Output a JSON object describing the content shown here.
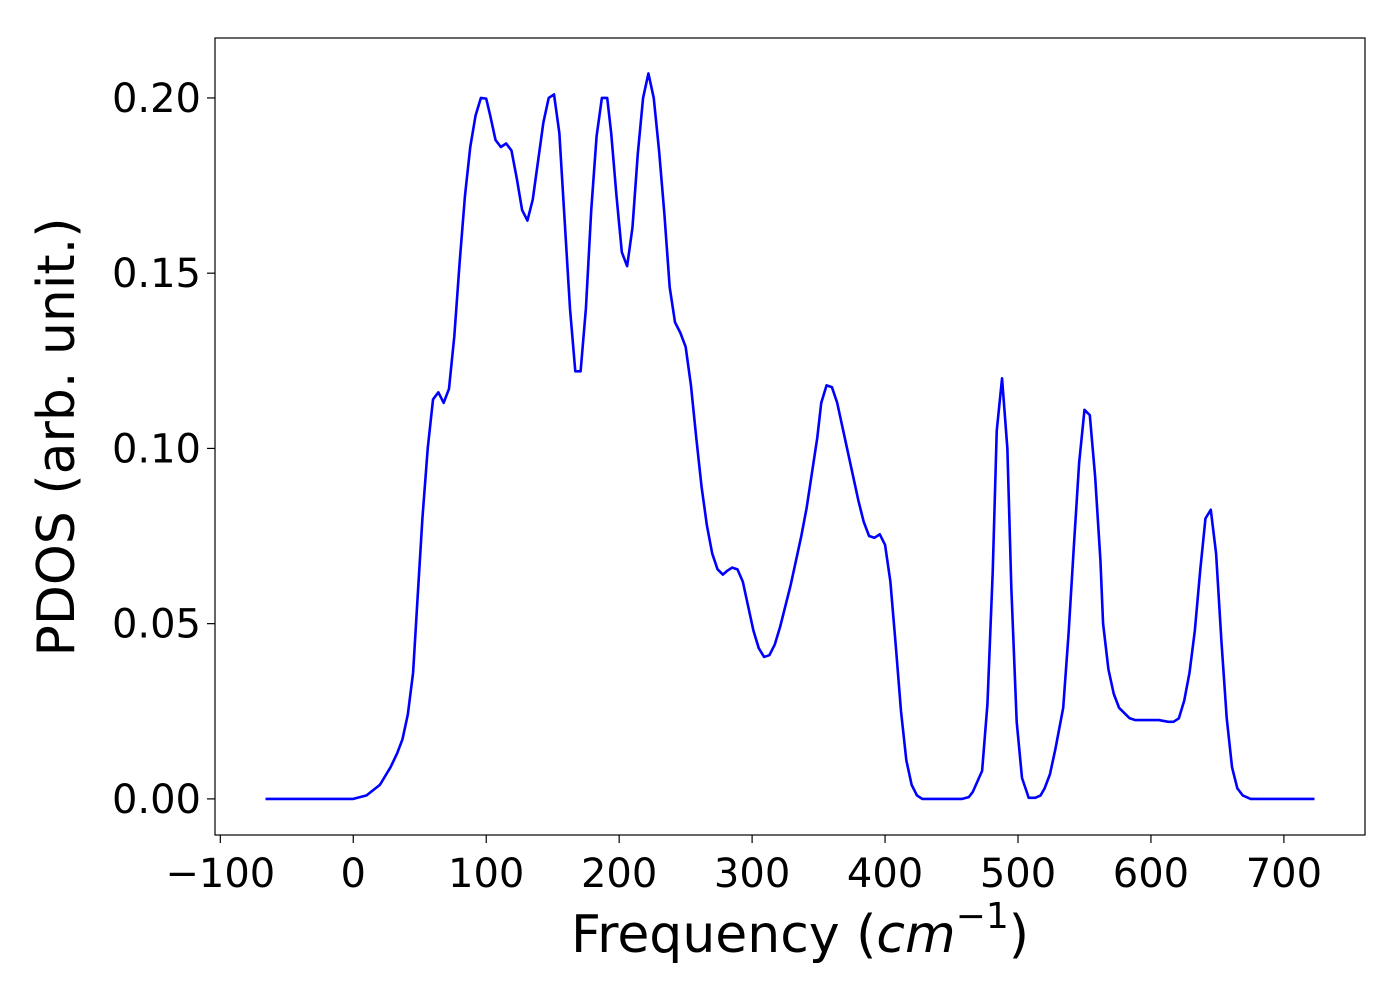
{
  "chart_data": {
    "type": "line",
    "ylabel": "PDOS (arb. unit.)",
    "xlabel": {
      "text": "Frequency (",
      "unit": "cm",
      "exponent": "−1",
      "close": ")"
    },
    "xlim": [
      -104,
      761
    ],
    "ylim": [
      -0.0103,
      0.2171
    ],
    "xticks": [
      {
        "value": -100,
        "label": "−100"
      },
      0,
      100,
      200,
      300,
      400,
      500,
      600,
      700
    ],
    "yticks": [
      {
        "value": 0,
        "label": "0.00"
      },
      {
        "value": 0.05,
        "label": "0.05"
      },
      {
        "value": 0.1,
        "label": "0.10"
      },
      {
        "value": 0.15,
        "label": "0.15"
      },
      {
        "value": 0.2,
        "label": "0.20"
      }
    ],
    "x": [
      -66,
      0,
      10,
      20,
      28,
      33,
      37,
      41,
      45,
      48,
      52,
      56,
      60,
      64,
      68,
      72,
      76,
      80,
      84,
      88,
      92,
      96,
      100,
      103,
      107,
      111,
      115,
      119,
      123,
      127,
      131,
      135,
      139,
      143,
      147,
      151,
      155,
      159,
      163,
      167,
      171,
      175,
      179,
      183,
      187,
      191,
      194,
      198,
      202,
      206,
      210,
      214,
      218,
      222,
      226,
      230,
      234,
      238,
      242,
      246,
      250,
      254,
      258,
      262,
      266,
      270,
      274,
      278,
      281,
      285,
      289,
      293,
      297,
      301,
      305,
      309,
      313,
      317,
      321,
      325,
      329,
      333,
      337,
      341,
      345,
      349,
      352,
      356,
      360,
      364,
      368,
      372,
      376,
      380,
      384,
      388,
      392,
      396,
      400,
      404,
      408,
      412,
      416,
      420,
      424,
      428,
      458,
      463,
      466,
      473,
      477,
      481,
      484,
      488,
      492,
      495,
      499,
      503,
      507,
      508,
      513,
      517,
      520,
      524,
      528,
      534,
      538,
      542,
      546,
      550,
      554,
      558,
      562,
      564,
      568,
      572,
      576,
      580,
      584,
      588,
      597,
      606,
      613,
      617,
      621,
      625,
      629,
      633,
      637,
      641,
      645,
      649,
      653,
      657,
      661,
      665,
      669,
      675,
      723
    ],
    "series": [
      {
        "name": "PDOS",
        "color": "#0000ff",
        "values": [
          0,
          0,
          0.001,
          0.004,
          0.009,
          0.013,
          0.017,
          0.024,
          0.036,
          0.055,
          0.08,
          0.1,
          0.114,
          0.116,
          0.113,
          0.117,
          0.132,
          0.153,
          0.172,
          0.186,
          0.195,
          0.2,
          0.1998,
          0.195,
          0.188,
          0.186,
          0.187,
          0.185,
          0.177,
          0.168,
          0.165,
          0.171,
          0.182,
          0.193,
          0.2,
          0.201,
          0.19,
          0.165,
          0.14,
          0.122,
          0.122,
          0.14,
          0.168,
          0.189,
          0.2,
          0.2,
          0.19,
          0.172,
          0.156,
          0.152,
          0.163,
          0.184,
          0.2,
          0.207,
          0.2,
          0.185,
          0.167,
          0.146,
          0.136,
          0.133,
          0.129,
          0.118,
          0.103,
          0.089,
          0.078,
          0.07,
          0.0655,
          0.064,
          0.065,
          0.066,
          0.0655,
          0.062,
          0.055,
          0.048,
          0.043,
          0.0405,
          0.041,
          0.044,
          0.049,
          0.055,
          0.061,
          0.068,
          0.075,
          0.083,
          0.093,
          0.103,
          0.113,
          0.118,
          0.1175,
          0.113,
          0.106,
          0.099,
          0.092,
          0.085,
          0.079,
          0.075,
          0.0745,
          0.0755,
          0.0725,
          0.062,
          0.044,
          0.025,
          0.011,
          0.004,
          0.001,
          0,
          0,
          0.0005,
          0.002,
          0.008,
          0.027,
          0.065,
          0.105,
          0.12,
          0.1,
          0.06,
          0.022,
          0.006,
          0.0015,
          0.0003,
          0.0003,
          0.001,
          0.003,
          0.007,
          0.014,
          0.026,
          0.047,
          0.072,
          0.096,
          0.111,
          0.1095,
          0.092,
          0.068,
          0.05,
          0.037,
          0.03,
          0.026,
          0.0245,
          0.023,
          0.0225,
          0.0225,
          0.0225,
          0.022,
          0.022,
          0.023,
          0.028,
          0.036,
          0.048,
          0.065,
          0.08,
          0.0825,
          0.07,
          0.045,
          0.023,
          0.009,
          0.003,
          0.001,
          0,
          0
        ]
      }
    ]
  }
}
